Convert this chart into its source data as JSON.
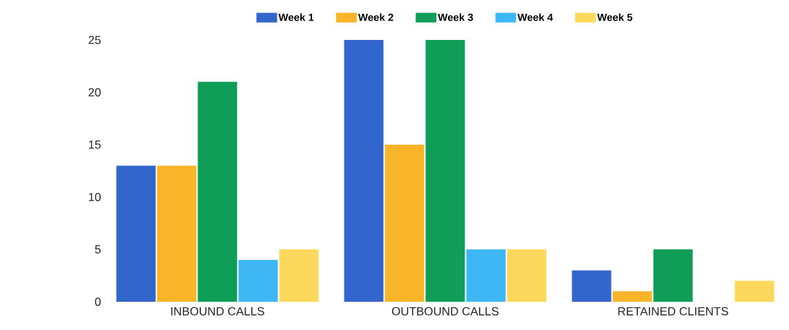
{
  "chart_data": {
    "type": "bar",
    "categories": [
      "INBOUND CALLS",
      "OUTBOUND CALLS",
      "RETAINED CLIENTS"
    ],
    "series": [
      {
        "name": "Week 1",
        "color": "#3366cc",
        "values": [
          13,
          25,
          3
        ]
      },
      {
        "name": "Week 2",
        "color": "#f9b42a",
        "values": [
          13,
          15,
          1
        ]
      },
      {
        "name": "Week 3",
        "color": "#0f9d58",
        "values": [
          21,
          25,
          5
        ]
      },
      {
        "name": "Week 4",
        "color": "#3fb7f4",
        "values": [
          4,
          5,
          0
        ]
      },
      {
        "name": "Week 5",
        "color": "#fcd95c",
        "values": [
          5,
          5,
          2
        ]
      }
    ],
    "ylim": [
      0,
      25
    ],
    "yticks": [
      0,
      5,
      10,
      15,
      20,
      25
    ],
    "grid": false,
    "legend": "top"
  }
}
